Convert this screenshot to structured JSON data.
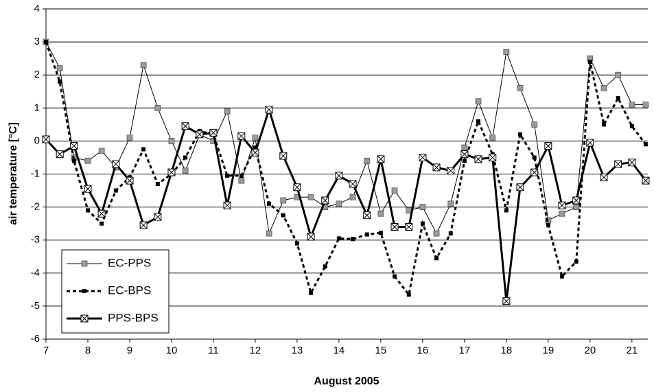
{
  "chart_data": {
    "type": "line",
    "x_label": "August 2005",
    "y_label": "air temperature [°C]",
    "x": [
      7,
      7.33,
      7.67,
      8,
      8.33,
      8.67,
      9,
      9.33,
      9.67,
      10,
      10.33,
      10.67,
      11,
      11.33,
      11.67,
      12,
      12.33,
      12.67,
      13,
      13.33,
      13.67,
      14,
      14.33,
      14.67,
      15,
      15.33,
      15.67,
      16,
      16.33,
      16.67,
      17,
      17.33,
      17.67,
      18,
      18.33,
      18.67,
      19,
      19.33,
      19.67,
      20,
      20.33,
      20.67,
      21,
      21.33
    ],
    "series": [
      {
        "name": "EC-PPS",
        "color": "#000000",
        "marker": "square",
        "dash": false,
        "values": [
          3.0,
          2.2,
          -0.5,
          -0.6,
          -0.3,
          -0.8,
          0.1,
          2.3,
          1.0,
          0.0,
          -0.9,
          0.2,
          0.0,
          0.9,
          -1.2,
          0.1,
          -2.8,
          -1.8,
          -1.7,
          -1.7,
          -2.0,
          -1.9,
          -1.7,
          -0.6,
          -2.2,
          -1.5,
          -2.1,
          -2.0,
          -2.8,
          -1.9,
          -0.2,
          1.2,
          0.1,
          2.7,
          1.6,
          0.5,
          -2.4,
          -2.2,
          -2.0,
          2.5,
          1.6,
          2.0,
          1.1,
          1.1
        ]
      },
      {
        "name": "EC-BPS",
        "color": "#000000",
        "marker": "small-square",
        "dash": true,
        "values": [
          3.0,
          1.8,
          -0.6,
          -2.1,
          -2.5,
          -1.5,
          -1.1,
          -0.25,
          -1.3,
          -1.0,
          -0.5,
          0.3,
          0.2,
          -1.05,
          -1.05,
          -0.2,
          -1.9,
          -2.25,
          -3.1,
          -4.6,
          -3.8,
          -2.95,
          -2.97,
          -2.83,
          -2.78,
          -4.1,
          -4.65,
          -2.5,
          -3.55,
          -2.8,
          -0.6,
          0.6,
          -0.4,
          -2.1,
          0.2,
          -0.5,
          -2.55,
          -4.1,
          -3.65,
          2.4,
          0.5,
          1.3,
          0.45,
          -0.1
        ]
      },
      {
        "name": "PPS-BPS",
        "color": "#000000",
        "marker": "boxed-x",
        "dash": false,
        "values": [
          0.05,
          -0.4,
          -0.15,
          -1.45,
          -2.2,
          -0.7,
          -1.2,
          -2.55,
          -2.3,
          -0.95,
          0.45,
          0.2,
          0.25,
          -1.95,
          0.15,
          -0.35,
          0.95,
          -0.45,
          -1.4,
          -2.9,
          -1.8,
          -1.05,
          -1.3,
          -2.25,
          -0.55,
          -2.6,
          -2.6,
          -0.5,
          -0.8,
          -0.9,
          -0.4,
          -0.55,
          -0.5,
          -4.85,
          -1.4,
          -0.95,
          -0.15,
          -1.95,
          -1.8,
          -0.05,
          -1.1,
          -0.7,
          -0.65,
          -1.2
        ]
      }
    ],
    "xlim": [
      7,
      21.38
    ],
    "xticks": [
      7,
      8,
      9,
      10,
      11,
      12,
      13,
      14,
      15,
      16,
      17,
      18,
      19,
      20,
      21
    ],
    "ylim": [
      -6,
      4
    ],
    "yticks": [
      -6,
      -5,
      -4,
      -3,
      -2,
      -1,
      0,
      1,
      2,
      3,
      4
    ],
    "grid": true,
    "legend": "lower left"
  }
}
